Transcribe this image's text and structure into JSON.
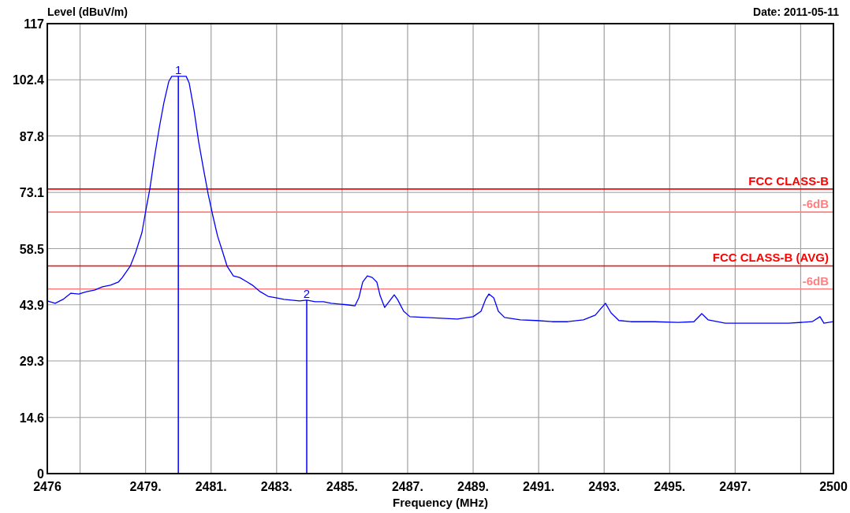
{
  "chart_data": {
    "type": "line",
    "xlabel": "Frequency (MHz)",
    "ylabel": "Level (dBuV/m)",
    "annotations": [
      "Date: 2011-05-11",
      {
        "text": "1",
        "x": 2480,
        "y": 103.3
      },
      {
        "text": "2",
        "x": 2483.92,
        "y": 45.1
      }
    ],
    "xlim": [
      2476,
      2500
    ],
    "xticks": [
      2476,
      {
        "value": 2477,
        "label": null
      },
      {
        "value": 2479,
        "label": "2479."
      },
      {
        "value": 2481,
        "label": "2481."
      },
      {
        "value": 2483,
        "label": "2483."
      },
      {
        "value": 2485,
        "label": "2485."
      },
      {
        "value": 2487,
        "label": "2487."
      },
      {
        "value": 2489,
        "label": "2489."
      },
      {
        "value": 2491,
        "label": "2491."
      },
      {
        "value": 2493,
        "label": "2493."
      },
      {
        "value": 2495,
        "label": "2495."
      },
      {
        "value": 2497,
        "label": "2497."
      },
      {
        "value": 2499,
        "label": null
      },
      2500
    ],
    "ylim": [
      0,
      117
    ],
    "yticks": [
      0,
      14.6,
      29.3,
      43.9,
      58.5,
      73.1,
      87.8,
      102.4,
      117
    ],
    "grid": true,
    "ref_lines": [
      {
        "axis": "y",
        "value": 74,
        "label": "FCC CLASS-B",
        "color": "#ff0000"
      },
      {
        "axis": "y",
        "value": 68,
        "label": "-6dB",
        "color": "#ff8080"
      },
      {
        "axis": "y",
        "value": 54,
        "label": "FCC CLASS-B (AVG)",
        "color": "#ff0000"
      },
      {
        "axis": "y",
        "value": 48,
        "label": "-6dB",
        "color": "#ff8080"
      }
    ],
    "series": [
      {
        "type": "bar",
        "color": "#0000ff",
        "x": [
          2480,
          2483.92
        ],
        "values": [
          103.3,
          45.1
        ]
      },
      {
        "color": "#0000ff",
        "x": [
          2476.0,
          2476.24,
          2476.48,
          2476.72,
          2476.96,
          2477.2,
          2477.44,
          2477.69,
          2477.93,
          2478.17,
          2478.29,
          2478.53,
          2478.7,
          2478.89,
          2479.03,
          2479.13,
          2479.27,
          2479.42,
          2479.56,
          2479.71,
          2479.8,
          2480.0,
          2480.24,
          2480.33,
          2480.48,
          2480.62,
          2480.77,
          2480.91,
          2481.06,
          2481.2,
          2481.34,
          2481.49,
          2481.68,
          2481.87,
          2482.07,
          2482.26,
          2482.5,
          2482.74,
          2482.98,
          2483.22,
          2483.46,
          2483.7,
          2483.92,
          2484.18,
          2484.43,
          2484.67,
          2484.91,
          2485.15,
          2485.39,
          2485.51,
          2485.63,
          2485.77,
          2485.92,
          2486.06,
          2486.16,
          2486.3,
          2486.45,
          2486.59,
          2486.69,
          2486.88,
          2487.07,
          2487.56,
          2488.04,
          2488.52,
          2489.0,
          2489.24,
          2489.38,
          2489.48,
          2489.63,
          2489.77,
          2489.96,
          2490.44,
          2490.93,
          2491.41,
          2491.89,
          2492.37,
          2492.73,
          2493.04,
          2493.21,
          2493.45,
          2493.81,
          2494.54,
          2495.26,
          2495.74,
          2495.98,
          2496.17,
          2496.7,
          2497.67,
          2498.63,
          2499.35,
          2499.59,
          2499.71,
          2500.0
        ],
        "values": [
          44.9,
          44.3,
          45.3,
          46.9,
          46.7,
          47.3,
          47.7,
          48.6,
          49.0,
          49.8,
          51.0,
          53.9,
          57.6,
          62.7,
          69.5,
          74.0,
          82.2,
          90.0,
          96.5,
          102.0,
          103.3,
          103.3,
          103.3,
          101.6,
          94.5,
          86.3,
          79.1,
          72.7,
          66.8,
          61.7,
          58.0,
          53.9,
          51.4,
          51.0,
          50.0,
          49.0,
          47.3,
          46.1,
          45.7,
          45.3,
          45.1,
          44.9,
          45.1,
          44.7,
          44.7,
          44.3,
          44.1,
          43.9,
          43.6,
          45.7,
          49.8,
          51.4,
          51.0,
          49.8,
          46.3,
          43.2,
          44.9,
          46.5,
          45.3,
          42.2,
          40.8,
          40.6,
          40.4,
          40.2,
          40.8,
          42.2,
          45.3,
          46.7,
          45.7,
          42.2,
          40.6,
          40.0,
          39.8,
          39.5,
          39.5,
          40.0,
          41.2,
          44.3,
          41.8,
          39.8,
          39.5,
          39.5,
          39.3,
          39.5,
          41.6,
          40.0,
          39.1,
          39.1,
          39.1,
          39.5,
          40.8,
          39.1,
          39.5
        ]
      }
    ]
  }
}
